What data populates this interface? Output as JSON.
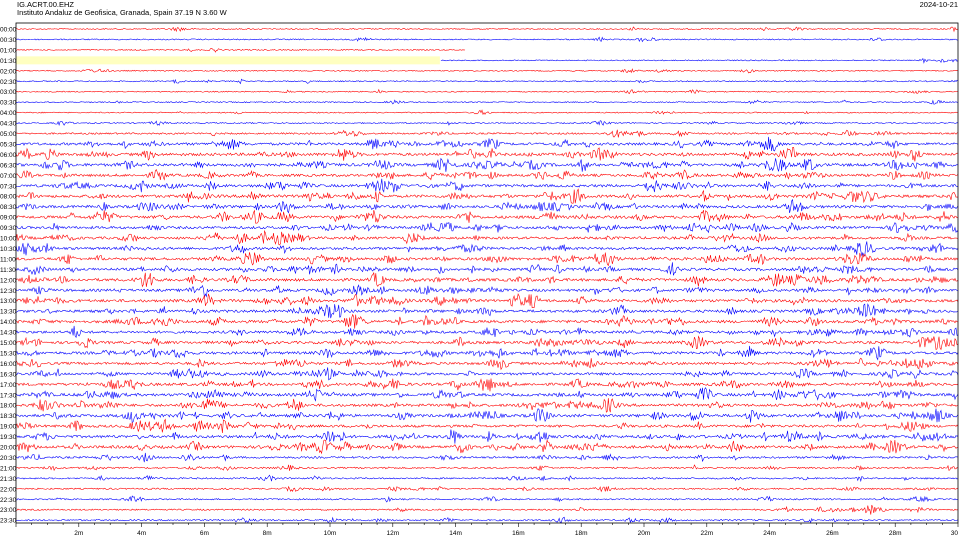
{
  "header": {
    "station": "IG.ACRT.00.EHZ",
    "institute": "Instituto Andaluz de Geofisica, Granada, Spain  37.19 N 3.60 W",
    "date": "2024-10-21"
  },
  "colors": {
    "red": "#ff0000",
    "blue": "#0000ff",
    "gap_highlight": "#ffffc0",
    "axis": "#000000"
  },
  "chart_data": {
    "type": "line",
    "title": "",
    "xlabel": "",
    "ylabel": "",
    "x_axis_minutes": [
      0,
      30
    ],
    "x_tick_labels": [
      "2m",
      "4m",
      "6m",
      "8m",
      "10m",
      "12m",
      "14m",
      "16m",
      "18m",
      "20m",
      "22m",
      "24m",
      "26m",
      "28m",
      "30"
    ],
    "row_labels": [
      "00:00",
      "00:30",
      "01:00",
      "01:30",
      "02:00",
      "02:30",
      "03:00",
      "03:30",
      "04:00",
      "04:30",
      "05:00",
      "05:30",
      "06:00",
      "06:30",
      "07:00",
      "07:30",
      "08:00",
      "08:30",
      "09:00",
      "09:30",
      "10:00",
      "10:30",
      "11:00",
      "11:30",
      "12:00",
      "12:30",
      "13:00",
      "13:30",
      "14:00",
      "14:30",
      "15:00",
      "15:30",
      "16:00",
      "16:30",
      "17:00",
      "17:30",
      "18:00",
      "18:30",
      "19:00",
      "19:30",
      "20:00",
      "20:30",
      "21:00",
      "21:30",
      "22:00",
      "22:30",
      "23:00",
      "23:30"
    ],
    "row_color_cycle": [
      "red",
      "blue"
    ],
    "activity_level": [
      0.12,
      0.15,
      0.12,
      0.12,
      0.12,
      0.15,
      0.12,
      0.12,
      0.12,
      0.15,
      0.35,
      0.7,
      0.8,
      0.85,
      0.7,
      0.75,
      0.8,
      0.75,
      0.8,
      0.7,
      0.7,
      0.7,
      0.75,
      0.75,
      0.8,
      0.7,
      0.8,
      0.75,
      0.8,
      0.7,
      0.75,
      0.75,
      0.7,
      0.7,
      0.75,
      0.8,
      0.75,
      0.8,
      0.7,
      0.8,
      0.8,
      0.45,
      0.3,
      0.3,
      0.25,
      0.25,
      0.25,
      0.25
    ],
    "data_gaps": [
      {
        "row": "01:00",
        "from_min": 14.3,
        "to_min": 30
      },
      {
        "row": "01:30",
        "from_min": 0,
        "to_min": 13.5,
        "highlighted": true
      }
    ]
  }
}
